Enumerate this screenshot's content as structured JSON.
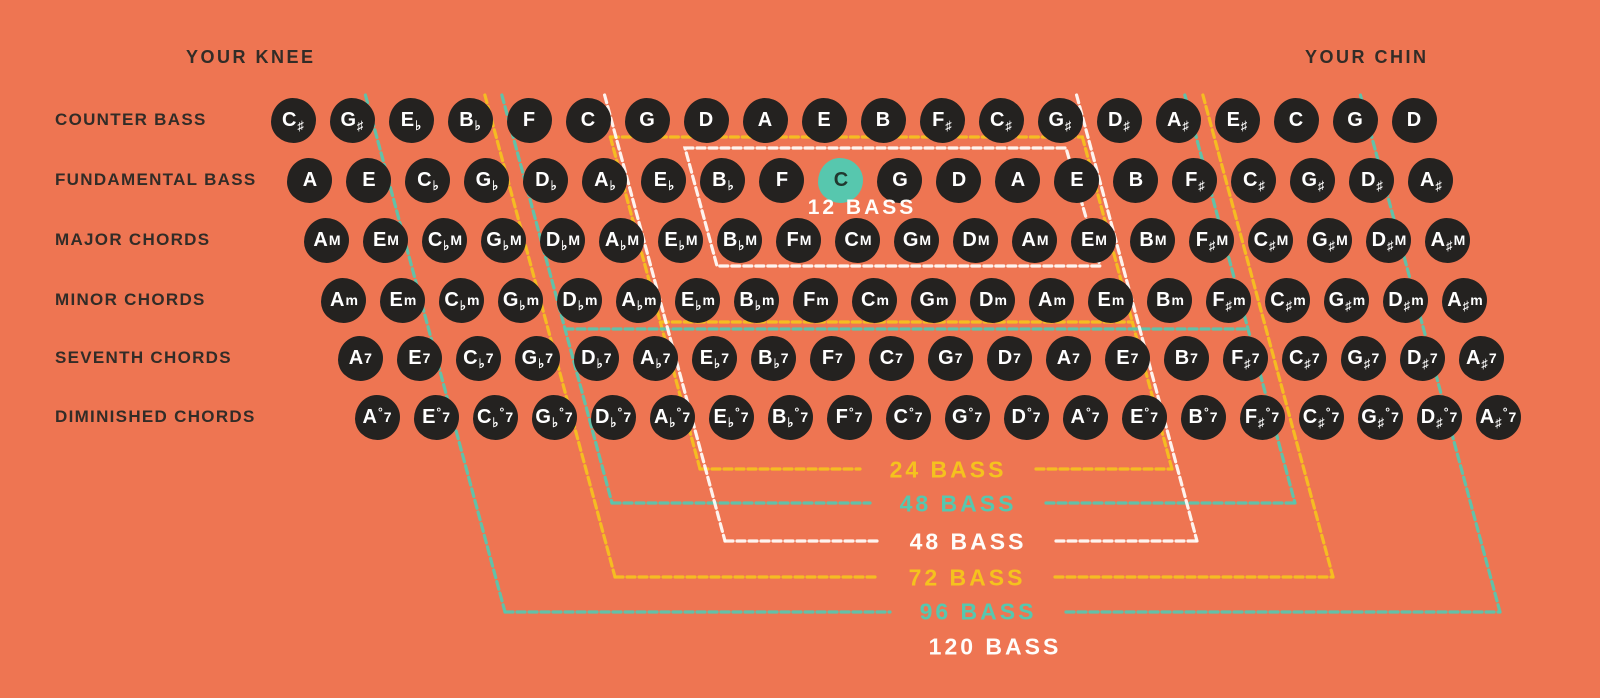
{
  "corner_labels": {
    "left": "YOUR KNEE",
    "right": "YOUR CHIN"
  },
  "rows": [
    {
      "label": "COUNTER BASS",
      "buttons": [
        "C♯",
        "G♯",
        "E♭",
        "B♭",
        "F",
        "C",
        "G",
        "D",
        "A",
        "E",
        "B",
        "F♯",
        "C♯",
        "G♯",
        "D♯",
        "A♯",
        "E♯",
        "C",
        "G",
        "D"
      ]
    },
    {
      "label": "FUNDAMENTAL BASS",
      "buttons": [
        "A",
        "E",
        "C♭",
        "G♭",
        "D♭",
        "A♭",
        "E♭",
        "B♭",
        "F",
        "C",
        "G",
        "D",
        "A",
        "E",
        "B",
        "F♯",
        "C♯",
        "G♯",
        "D♯",
        "A♯"
      ]
    },
    {
      "label": "MAJOR CHORDS",
      "buttons": [
        "AM",
        "EM",
        "C♭M",
        "G♭M",
        "D♭M",
        "A♭M",
        "E♭M",
        "B♭M",
        "FM",
        "CM",
        "GM",
        "DM",
        "AM",
        "EM",
        "BM",
        "F♯M",
        "C♯M",
        "G♯M",
        "D♯M",
        "A♯M"
      ]
    },
    {
      "label": "MINOR CHORDS",
      "buttons": [
        "Am",
        "Em",
        "C♭m",
        "G♭m",
        "D♭m",
        "A♭m",
        "E♭m",
        "B♭m",
        "Fm",
        "Cm",
        "Gm",
        "Dm",
        "Am",
        "Em",
        "Bm",
        "F♯m",
        "C♯m",
        "G♯m",
        "D♯m",
        "A♯m"
      ]
    },
    {
      "label": "SEVENTH CHORDS",
      "buttons": [
        "A7",
        "E7",
        "C♭7",
        "G♭7",
        "D♭7",
        "A♭7",
        "E♭7",
        "B♭7",
        "F7",
        "C7",
        "G7",
        "D7",
        "A7",
        "E7",
        "B7",
        "F♯7",
        "C♯7",
        "G♯7",
        "D♯7",
        "A♯7"
      ]
    },
    {
      "label": "DIMINISHED CHORDS",
      "buttons": [
        "A°7",
        "E°7",
        "C♭°7",
        "G♭°7",
        "D♭°7",
        "A♭°7",
        "E♭°7",
        "B♭°7",
        "F°7",
        "C°7",
        "G°7",
        "D°7",
        "A°7",
        "E°7",
        "B°7",
        "F♯°7",
        "C♯°7",
        "G♯°7",
        "D♯°7",
        "A♯°7"
      ]
    }
  ],
  "highlighted_button": {
    "row_index": 1,
    "col_index": 9,
    "label": "C"
  },
  "bass_ranges": [
    {
      "label": "12 BASS",
      "color": "white"
    },
    {
      "label": "24 BASS",
      "color": "yellow"
    },
    {
      "label": "48 BASS",
      "color": "teal"
    },
    {
      "label": "48 BASS",
      "color": "white"
    },
    {
      "label": "72 BASS",
      "color": "yellow"
    },
    {
      "label": "96 BASS",
      "color": "teal"
    },
    {
      "label": "120 BASS",
      "color": "white"
    }
  ],
  "colors": {
    "background": "#EE7552",
    "button": "#242220",
    "button_text": "#FFFFFF",
    "highlight": "#57C7AE",
    "highlight_text": "#21382F",
    "text_dark": "#322C27",
    "yellow": "#F5C21E",
    "teal": "#57C7AE",
    "white": "#FFFDFA"
  }
}
